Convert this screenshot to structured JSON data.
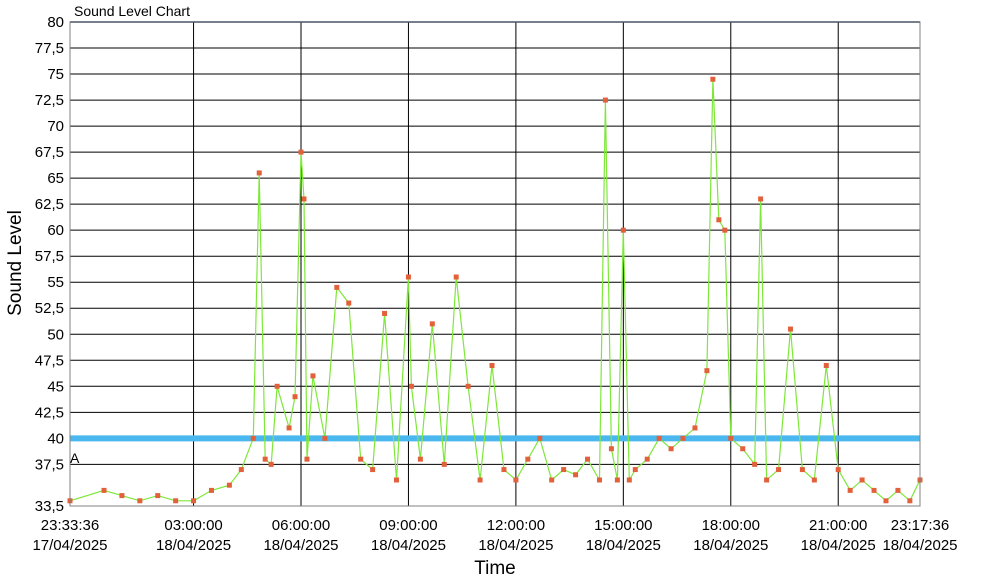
{
  "chart_data": {
    "type": "line",
    "title": "Sound Level Chart",
    "xlabel": "Time",
    "ylabel": "Sound Level",
    "ylim": [
      33.5,
      80
    ],
    "grid": true,
    "y_ticks": [
      "33,5",
      "37,5",
      "40",
      "42,5",
      "45",
      "47,5",
      "50",
      "52,5",
      "55",
      "57,5",
      "60",
      "62,5",
      "65",
      "67,5",
      "70",
      "72,5",
      "75",
      "77,5",
      "80"
    ],
    "y_tick_values": [
      33.5,
      37.5,
      40,
      42.5,
      45,
      47.5,
      50,
      52.5,
      55,
      57.5,
      60,
      62.5,
      65,
      67.5,
      70,
      72.5,
      75,
      77.5,
      80
    ],
    "x_range": [
      "2025-04-17 23:33:36",
      "2025-04-18 23:17:36"
    ],
    "x_ticks": [
      {
        "time": "23:33:36",
        "date": "17/04/2025"
      },
      {
        "time": "03:00:00",
        "date": "18/04/2025"
      },
      {
        "time": "06:00:00",
        "date": "18/04/2025"
      },
      {
        "time": "09:00:00",
        "date": "18/04/2025"
      },
      {
        "time": "12:00:00",
        "date": "18/04/2025"
      },
      {
        "time": "15:00:00",
        "date": "18/04/2025"
      },
      {
        "time": "18:00:00",
        "date": "18/04/2025"
      },
      {
        "time": "21:00:00",
        "date": "18/04/2025"
      },
      {
        "time": "23:17:36",
        "date": "18/04/2025"
      }
    ],
    "threshold": {
      "value": 40,
      "color": "#4ab8ee"
    },
    "annotation": "A",
    "series": [
      {
        "color": "#7ee83a",
        "marker_color": "#e2603a",
        "x": [
          "23:33",
          "00:30",
          "01:00",
          "01:30",
          "02:00",
          "02:30",
          "03:00",
          "03:30",
          "04:00",
          "04:20",
          "04:40",
          "04:50",
          "05:00",
          "05:10",
          "05:20",
          "05:40",
          "05:50",
          "06:00",
          "06:05",
          "06:10",
          "06:20",
          "06:40",
          "07:00",
          "07:20",
          "07:40",
          "08:00",
          "08:20",
          "08:40",
          "09:00",
          "09:05",
          "09:20",
          "09:40",
          "10:00",
          "10:20",
          "10:40",
          "11:00",
          "11:20",
          "11:40",
          "12:00",
          "12:20",
          "12:40",
          "13:00",
          "13:20",
          "13:40",
          "14:00",
          "14:20",
          "14:30",
          "14:40",
          "14:50",
          "15:00",
          "15:10",
          "15:20",
          "15:40",
          "16:00",
          "16:20",
          "16:40",
          "17:00",
          "17:20",
          "17:30",
          "17:40",
          "17:50",
          "18:00",
          "18:20",
          "18:40",
          "18:50",
          "19:00",
          "19:20",
          "19:40",
          "20:00",
          "20:20",
          "20:40",
          "21:00",
          "21:20",
          "21:40",
          "22:00",
          "22:20",
          "22:40",
          "23:00",
          "23:17"
        ],
        "y": [
          34,
          35,
          34.5,
          34,
          34.5,
          34,
          34,
          35,
          35.5,
          37,
          40,
          65.5,
          38,
          37.5,
          45,
          41,
          44,
          67.5,
          63,
          38,
          46,
          40,
          54.5,
          53,
          38,
          37,
          52,
          36,
          55.5,
          45,
          38,
          51,
          37.5,
          55.5,
          45,
          36,
          47,
          37,
          36,
          38,
          40,
          36,
          37,
          36.5,
          38,
          36,
          72.5,
          39,
          36,
          60,
          36,
          37,
          38,
          40,
          39,
          40,
          41,
          46.5,
          74.5,
          61,
          60,
          40,
          39,
          37.5,
          63,
          36,
          37,
          50.5,
          37,
          36,
          47,
          37,
          35,
          36,
          35,
          34,
          35,
          34,
          36
        ]
      }
    ]
  }
}
